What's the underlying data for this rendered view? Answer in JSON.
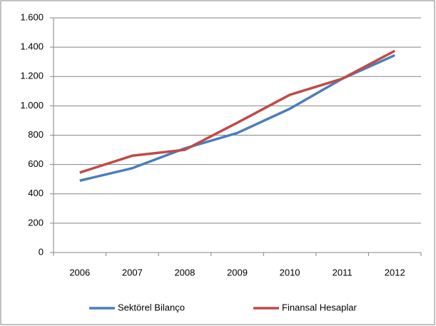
{
  "chart_data": {
    "type": "line",
    "categories": [
      "2006",
      "2007",
      "2008",
      "2009",
      "2010",
      "2011",
      "2012"
    ],
    "series": [
      {
        "name": "Sektörel Bilanço",
        "color": "#4a7ebb",
        "values": [
          490,
          575,
          710,
          815,
          980,
          1185,
          1345
        ]
      },
      {
        "name": "Finansal Hesaplar",
        "color": "#be4b48",
        "values": [
          545,
          660,
          700,
          885,
          1075,
          1185,
          1375
        ]
      }
    ],
    "ylim": [
      0,
      1600
    ],
    "yticks": [
      0,
      200,
      400,
      600,
      800,
      {
        "value": 1000,
        "label": "1.000"
      },
      {
        "value": 1200,
        "label": "1.200"
      },
      {
        "value": 1400,
        "label": "1.400"
      },
      {
        "value": 1600,
        "label": "1.600"
      }
    ],
    "grid": true,
    "legend": "bottom"
  }
}
